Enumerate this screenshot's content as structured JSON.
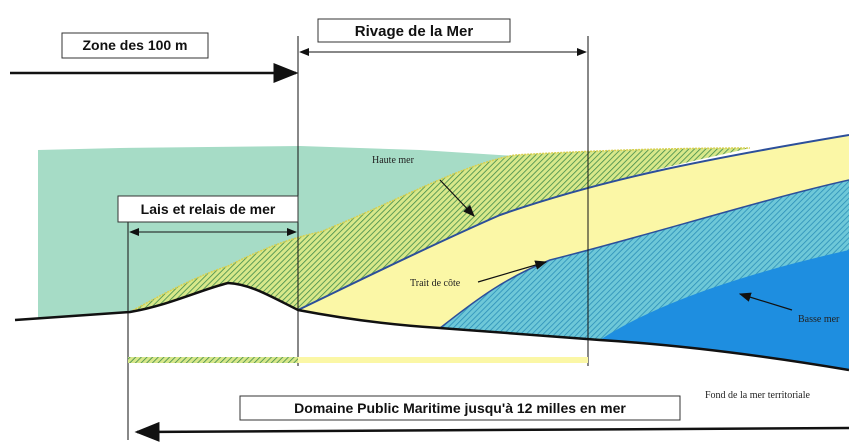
{
  "labels": {
    "zone": "Zone des 100 m",
    "rivage": "Rivage de la Mer",
    "lais": "Lais et relais de mer",
    "haute_mer": "Haute mer",
    "trait_de_cote": "Trait de côte",
    "basse_mer": "Basse mer",
    "fond": "Fond de la mer territoriale",
    "domaine": "Domaine Public Maritime jusqu'à 12 milles en mer"
  }
}
